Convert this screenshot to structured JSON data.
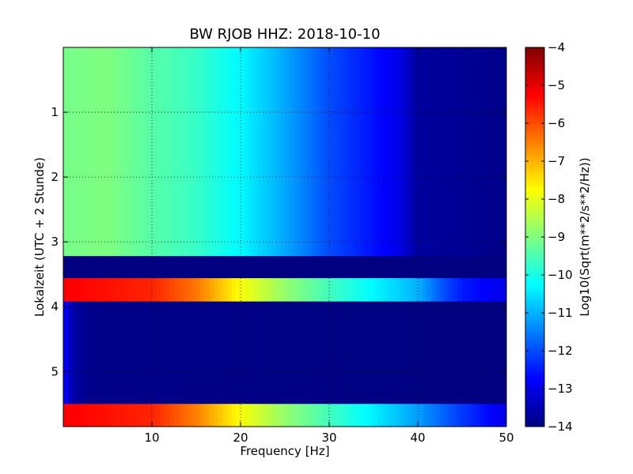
{
  "chart_data": {
    "type": "heatmap",
    "title": "BW RJOB HHZ: 2018-10-10",
    "xlabel": "Frequency [Hz]",
    "ylabel": "Lokalzeit (UTC + 2 Stunde)",
    "xlim": [
      0,
      50
    ],
    "ylim": [
      5.85,
      0
    ],
    "x_ticks": [
      10,
      20,
      30,
      40,
      50
    ],
    "y_ticks": [
      1,
      2,
      3,
      4,
      5
    ],
    "grid": true,
    "colorbar": {
      "label": "Log10(Sqrt(m**2/s**2/Hz))",
      "min": -14,
      "max": -4,
      "ticks": [
        -4,
        -5,
        -6,
        -7,
        -8,
        -9,
        -10,
        -11,
        -12,
        -13,
        -14
      ],
      "colormap": "jet"
    },
    "segments": [
      {
        "time_start": 0.0,
        "time_end": 3.22,
        "profile": [
          [
            0,
            -9.1
          ],
          [
            5,
            -9.0
          ],
          [
            10,
            -9.4
          ],
          [
            15,
            -9.7
          ],
          [
            20,
            -10.3
          ],
          [
            25,
            -11.1
          ],
          [
            30,
            -12.0
          ],
          [
            35,
            -12.6
          ],
          [
            38,
            -13.0
          ],
          [
            40,
            -13.7
          ],
          [
            50,
            -13.9
          ]
        ]
      },
      {
        "time_start": 3.22,
        "time_end": 3.56,
        "profile": [
          [
            0,
            -14.0
          ],
          [
            50,
            -14.0
          ]
        ]
      },
      {
        "time_start": 3.56,
        "time_end": 3.92,
        "profile": [
          [
            0,
            -5.2
          ],
          [
            10,
            -5.6
          ],
          [
            15,
            -6.4
          ],
          [
            20,
            -7.8
          ],
          [
            25,
            -8.8
          ],
          [
            30,
            -9.6
          ],
          [
            35,
            -10.3
          ],
          [
            40,
            -11.0
          ],
          [
            43,
            -12.0
          ],
          [
            45,
            -12.5
          ],
          [
            50,
            -13.0
          ]
        ]
      },
      {
        "time_start": 3.92,
        "time_end": 5.5,
        "profile": [
          [
            0,
            -12.5
          ],
          [
            1,
            -13.6
          ],
          [
            3,
            -13.9
          ],
          [
            50,
            -14.0
          ]
        ]
      },
      {
        "time_start": 5.5,
        "time_end": 5.85,
        "profile": [
          [
            0,
            -5.2
          ],
          [
            10,
            -5.6
          ],
          [
            15,
            -6.5
          ],
          [
            20,
            -7.8
          ],
          [
            25,
            -8.8
          ],
          [
            30,
            -9.6
          ],
          [
            35,
            -10.4
          ],
          [
            40,
            -11.2
          ],
          [
            45,
            -12.2
          ],
          [
            50,
            -13.0
          ]
        ]
      }
    ]
  }
}
